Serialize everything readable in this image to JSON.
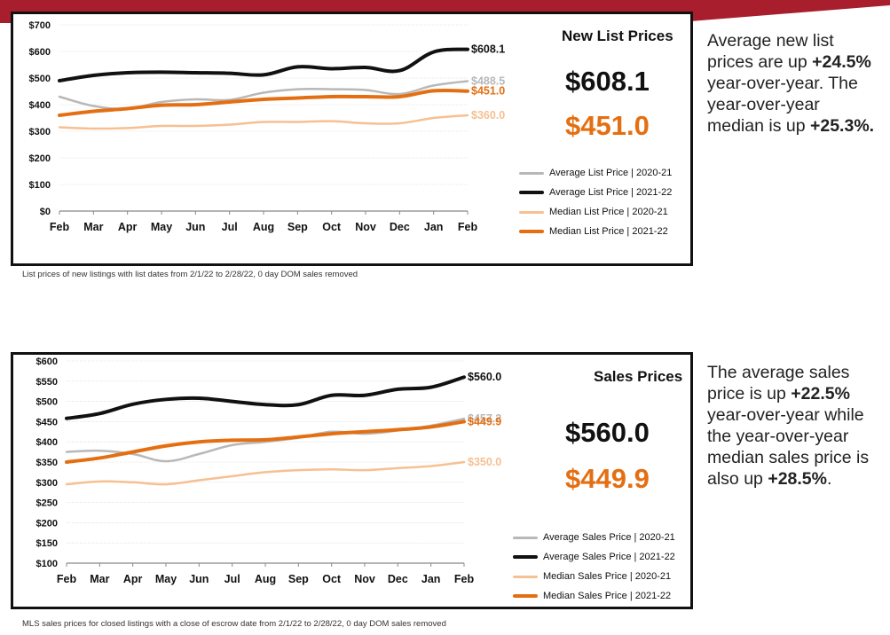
{
  "colors": {
    "banner": "#a81e2d",
    "avg_prev": "#b8b8b8",
    "avg_curr": "#111111",
    "med_prev": "#f6c092",
    "med_curr": "#e46f12"
  },
  "panel1": {
    "title": "New List Prices",
    "big_avg": "$608.1",
    "big_median": "$451.0",
    "footnote": "List prices of new listings with list dates from 2/1/22 to 2/28/22, 0 day DOM sales removed",
    "legend": [
      {
        "label": "Average List Price | 2020-21",
        "color": "#b8b8b8"
      },
      {
        "label": "Average List Price | 2021-22",
        "color": "#111111"
      },
      {
        "label": "Median List Price | 2020-21",
        "color": "#f6c092"
      },
      {
        "label": "Median List Price | 2021-22",
        "color": "#e46f12"
      }
    ],
    "end_labels": [
      "$608.1",
      "$488.5",
      "$451.0",
      "$360.0"
    ]
  },
  "panel2": {
    "title": "Sales Prices",
    "big_avg": "$560.0",
    "big_median": "$449.9",
    "footnote": "MLS sales prices for closed listings with a close of escrow date from 2/1/22 to 2/28/22, 0 day DOM sales removed",
    "legend": [
      {
        "label": "Average Sales Price | 2020-21",
        "color": "#b8b8b8"
      },
      {
        "label": "Average Sales Price | 2021-22",
        "color": "#111111"
      },
      {
        "label": "Median Sales Price | 2020-21",
        "color": "#f6c092"
      },
      {
        "label": "Median Sales Price | 2021-22",
        "color": "#e46f12"
      }
    ],
    "end_labels": [
      "$560.0",
      "$457.2",
      "$449.9",
      "$350.0"
    ]
  },
  "side1": {
    "parts": [
      {
        "t": "Average new list prices are up ",
        "b": false
      },
      {
        "t": "+24.5%",
        "b": true
      },
      {
        "t": " year-over-year. The year-over-year median is up ",
        "b": false
      },
      {
        "t": "+25.3%.",
        "b": true
      }
    ]
  },
  "side2": {
    "parts": [
      {
        "t": "The average sales price is up ",
        "b": false
      },
      {
        "t": "+22.5%",
        "b": true
      },
      {
        "t": " year-over-year while the year-over-year median sales price is also up ",
        "b": false
      },
      {
        "t": "+28.5%",
        "b": true
      },
      {
        "t": ".",
        "b": false
      }
    ]
  },
  "chart_data": [
    {
      "type": "line",
      "title": "New List Prices",
      "categories": [
        "Feb",
        "Mar",
        "Apr",
        "May",
        "Jun",
        "Jul",
        "Aug",
        "Sep",
        "Oct",
        "Nov",
        "Dec",
        "Jan",
        "Feb"
      ],
      "y_ticks": [
        "$0",
        "$100",
        "$200",
        "$300",
        "$400",
        "$500",
        "$600",
        "$700"
      ],
      "ylim": [
        0,
        700
      ],
      "grid": true,
      "legend_position": "bottom-right",
      "series": [
        {
          "name": "Average List Price | 2020-21",
          "color": "#b8b8b8",
          "values": [
            430,
            395,
            385,
            410,
            420,
            418,
            445,
            458,
            458,
            455,
            440,
            472,
            488.5
          ]
        },
        {
          "name": "Average List Price | 2021-22",
          "color": "#111111",
          "values": [
            490,
            510,
            520,
            522,
            520,
            518,
            512,
            542,
            535,
            540,
            528,
            598,
            608.1
          ]
        },
        {
          "name": "Median List Price | 2020-21",
          "color": "#f6c092",
          "values": [
            315,
            310,
            312,
            320,
            320,
            325,
            335,
            335,
            338,
            330,
            330,
            350,
            360
          ]
        },
        {
          "name": "Median List Price | 2021-22",
          "color": "#e46f12",
          "values": [
            360,
            375,
            385,
            398,
            400,
            410,
            420,
            425,
            430,
            430,
            430,
            452,
            451.0
          ]
        }
      ]
    },
    {
      "type": "line",
      "title": "Sales Prices",
      "categories": [
        "Feb",
        "Mar",
        "Apr",
        "May",
        "Jun",
        "Jul",
        "Aug",
        "Sep",
        "Oct",
        "Nov",
        "Dec",
        "Jan",
        "Feb"
      ],
      "y_ticks": [
        "$100",
        "$150",
        "$200",
        "$250",
        "$300",
        "$350",
        "$400",
        "$450",
        "$500",
        "$550",
        "$600"
      ],
      "ylim": [
        100,
        600
      ],
      "grid": true,
      "legend_position": "bottom-right",
      "series": [
        {
          "name": "Average Sales Price | 2020-21",
          "color": "#b8b8b8",
          "values": [
            375,
            378,
            370,
            352,
            370,
            392,
            400,
            410,
            425,
            420,
            428,
            440,
            457.2
          ]
        },
        {
          "name": "Average Sales Price | 2021-22",
          "color": "#111111",
          "values": [
            458,
            470,
            493,
            505,
            508,
            500,
            492,
            492,
            515,
            515,
            530,
            535,
            560.0
          ]
        },
        {
          "name": "Median Sales Price | 2020-21",
          "color": "#f6c092",
          "values": [
            295,
            302,
            300,
            295,
            305,
            315,
            325,
            330,
            332,
            330,
            335,
            340,
            350.0
          ]
        },
        {
          "name": "Median Sales Price | 2021-22",
          "color": "#e46f12",
          "values": [
            350,
            360,
            375,
            390,
            400,
            404,
            405,
            412,
            420,
            425,
            430,
            437,
            449.9
          ]
        }
      ]
    }
  ]
}
